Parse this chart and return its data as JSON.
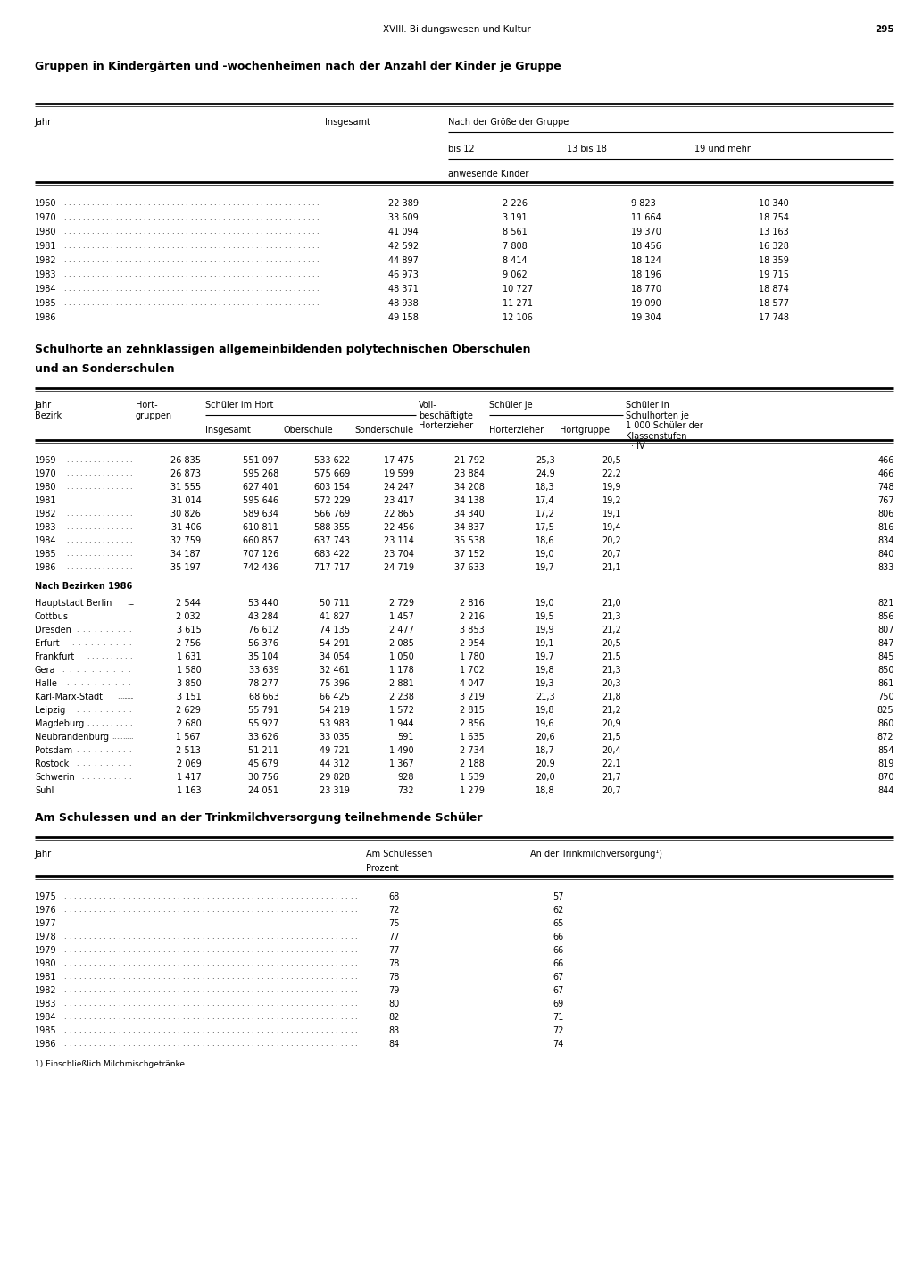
{
  "page_header_left": "XVIII. Bildungswesen und Kultur",
  "page_number": "295",
  "section1_title": "Gruppen in Kindergärten und -wochenheimen nach der Anzahl der Kinder je Gruppe",
  "section1_data": [
    [
      "1960",
      "22 389",
      "2 226",
      "9 823",
      "10 340"
    ],
    [
      "1970",
      "33 609",
      "3 191",
      "11 664",
      "18 754"
    ],
    [
      "1980",
      "41 094",
      "8 561",
      "19 370",
      "13 163"
    ],
    [
      "1981",
      "42 592",
      "7 808",
      "18 456",
      "16 328"
    ],
    [
      "1982",
      "44 897",
      "8 414",
      "18 124",
      "18 359"
    ],
    [
      "1983",
      "46 973",
      "9 062",
      "18 196",
      "19 715"
    ],
    [
      "1984",
      "48 371",
      "10 727",
      "18 770",
      "18 874"
    ],
    [
      "1985",
      "48 938",
      "11 271",
      "19 090",
      "18 577"
    ],
    [
      "1986",
      "49 158",
      "12 106",
      "19 304",
      "17 748"
    ]
  ],
  "section2_title_line1": "Schulhorte an zehnklassigen allgemeinbildenden polytechnischen Oberschulen",
  "section2_title_line2": "und an Sonderschulen",
  "section2_data_years": [
    [
      "1969",
      "26 835",
      "551 097",
      "533 622",
      "17 475",
      "21 792",
      "25,3",
      "20,5",
      "466"
    ],
    [
      "1970",
      "26 873",
      "595 268",
      "575 669",
      "19 599",
      "23 884",
      "24,9",
      "22,2",
      "466"
    ],
    [
      "1980",
      "31 555",
      "627 401",
      "603 154",
      "24 247",
      "34 208",
      "18,3",
      "19,9",
      "748"
    ],
    [
      "1981",
      "31 014",
      "595 646",
      "572 229",
      "23 417",
      "34 138",
      "17,4",
      "19,2",
      "767"
    ],
    [
      "1982",
      "30 826",
      "589 634",
      "566 769",
      "22 865",
      "34 340",
      "17,2",
      "19,1",
      "806"
    ],
    [
      "1983",
      "31 406",
      "610 811",
      "588 355",
      "22 456",
      "34 837",
      "17,5",
      "19,4",
      "816"
    ],
    [
      "1984",
      "32 759",
      "660 857",
      "637 743",
      "23 114",
      "35 538",
      "18,6",
      "20,2",
      "834"
    ],
    [
      "1985",
      "34 187",
      "707 126",
      "683 422",
      "23 704",
      "37 152",
      "19,0",
      "20,7",
      "840"
    ],
    [
      "1986",
      "35 197",
      "742 436",
      "717 717",
      "24 719",
      "37 633",
      "19,7",
      "21,1",
      "833"
    ]
  ],
  "section2_bezirke_header": "Nach Bezirken 1986",
  "section2_data_bezirke": [
    [
      "Hauptstadt Berlin",
      "2 544",
      "53 440",
      "50 711",
      "2 729",
      "2 816",
      "19,0",
      "21,0",
      "821"
    ],
    [
      "Cottbus",
      "2 032",
      "43 284",
      "41 827",
      "1 457",
      "2 216",
      "19,5",
      "21,3",
      "856"
    ],
    [
      "Dresden",
      "3 615",
      "76 612",
      "74 135",
      "2 477",
      "3 853",
      "19,9",
      "21,2",
      "807"
    ],
    [
      "Erfurt",
      "2 756",
      "56 376",
      "54 291",
      "2 085",
      "2 954",
      "19,1",
      "20,5",
      "847"
    ],
    [
      "Frankfurt",
      "1 631",
      "35 104",
      "34 054",
      "1 050",
      "1 780",
      "19,7",
      "21,5",
      "845"
    ],
    [
      "Gera",
      "1 580",
      "33 639",
      "32 461",
      "1 178",
      "1 702",
      "19,8",
      "21,3",
      "850"
    ],
    [
      "Halle",
      "3 850",
      "78 277",
      "75 396",
      "2 881",
      "4 047",
      "19,3",
      "20,3",
      "861"
    ],
    [
      "Karl-Marx-Stadt",
      "3 151",
      "68 663",
      "66 425",
      "2 238",
      "3 219",
      "21,3",
      "21,8",
      "750"
    ],
    [
      "Leipzig",
      "2 629",
      "55 791",
      "54 219",
      "1 572",
      "2 815",
      "19,8",
      "21,2",
      "825"
    ],
    [
      "Magdeburg",
      "2 680",
      "55 927",
      "53 983",
      "1 944",
      "2 856",
      "19,6",
      "20,9",
      "860"
    ],
    [
      "Neubrandenburg",
      "1 567",
      "33 626",
      "33 035",
      "591",
      "1 635",
      "20,6",
      "21,5",
      "872"
    ],
    [
      "Potsdam",
      "2 513",
      "51 211",
      "49 721",
      "1 490",
      "2 734",
      "18,7",
      "20,4",
      "854"
    ],
    [
      "Rostock",
      "2 069",
      "45 679",
      "44 312",
      "1 367",
      "2 188",
      "20,9",
      "22,1",
      "819"
    ],
    [
      "Schwerin",
      "1 417",
      "30 756",
      "29 828",
      "928",
      "1 539",
      "20,0",
      "21,7",
      "870"
    ],
    [
      "Suhl",
      "1 163",
      "24 051",
      "23 319",
      "732",
      "1 279",
      "18,8",
      "20,7",
      "844"
    ]
  ],
  "section3_title": "Am Schulessen und an der Trinkmilchversorgung teilnehmende Schüler",
  "section3_data": [
    [
      "1975",
      "68",
      "57"
    ],
    [
      "1976",
      "72",
      "62"
    ],
    [
      "1977",
      "75",
      "65"
    ],
    [
      "1978",
      "77",
      "66"
    ],
    [
      "1979",
      "77",
      "66"
    ],
    [
      "1980",
      "78",
      "66"
    ],
    [
      "1981",
      "78",
      "67"
    ],
    [
      "1982",
      "79",
      "67"
    ],
    [
      "1983",
      "80",
      "69"
    ],
    [
      "1984",
      "82",
      "71"
    ],
    [
      "1985",
      "83",
      "72"
    ],
    [
      "1986",
      "84",
      "74"
    ]
  ],
  "section3_footnote": "1) Einschließlich Milchmischgetränke.",
  "bg_color": "#ffffff",
  "text_color": "#000000",
  "lm": 0.038,
  "rm": 0.978,
  "fs_pagehdr": 7.5,
  "fs_title": 9.0,
  "fs_col": 7.0,
  "fs_data": 7.0,
  "fs_footnote": 6.5
}
